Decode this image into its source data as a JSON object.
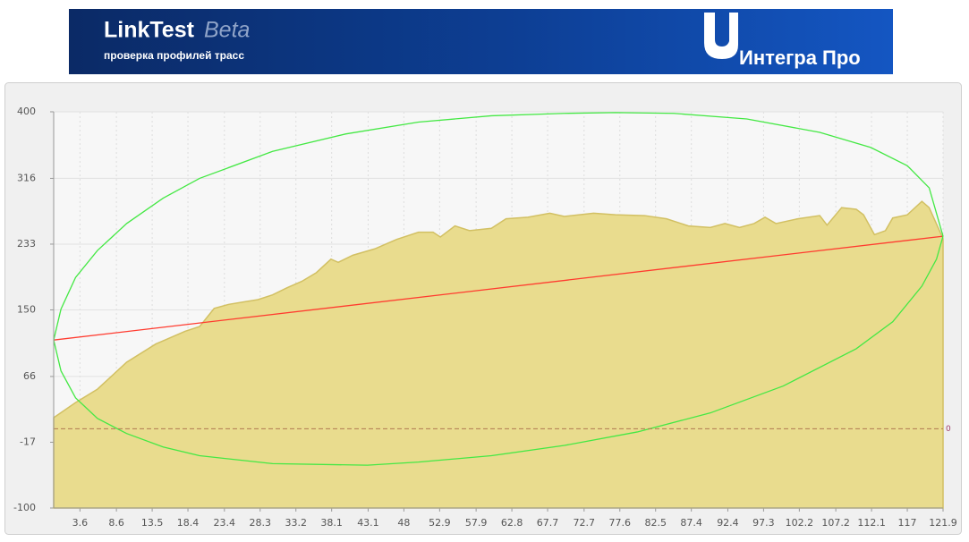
{
  "header": {
    "title": "LinkTest",
    "badge": "Beta",
    "subtitle": "проверка профилей трасс",
    "brand": "Интегра Про"
  },
  "chart_data": {
    "type": "line",
    "xlim": [
      0,
      121.9
    ],
    "xticks": [
      3.6,
      8.6,
      13.5,
      18.4,
      23.4,
      28.3,
      33.2,
      38.1,
      43.1,
      48,
      52.9,
      57.9,
      62.8,
      67.7,
      72.7,
      77.6,
      82.5,
      87.4,
      92.4,
      97.3,
      102.2,
      107.2,
      112.1,
      117,
      121.9
    ],
    "ylim": [
      -100,
      400
    ],
    "yticks": [
      -100,
      -17,
      66,
      150,
      233,
      316,
      400
    ],
    "hline": 0,
    "grid": true,
    "series": [
      {
        "name": "terrain",
        "color": "#e9dc8e",
        "fill": true,
        "x": [
          0,
          3,
          6,
          10,
          14,
          18,
          20,
          22,
          24,
          26,
          28,
          30,
          32,
          34,
          36,
          38,
          39,
          41,
          44,
          47,
          50,
          52,
          53,
          55,
          57,
          60,
          62,
          65,
          68,
          70,
          74,
          77,
          81,
          84,
          87,
          90,
          92,
          94,
          96,
          97.5,
          99,
          102,
          105,
          106,
          108,
          110,
          111,
          112.5,
          114,
          115,
          117,
          119,
          120,
          121.9
        ],
        "values": [
          14,
          33,
          50,
          84,
          107,
          123,
          129,
          152,
          157,
          160,
          163,
          169,
          178,
          186,
          197,
          214,
          210,
          219,
          227,
          239,
          248,
          248,
          242,
          256,
          250,
          253,
          265,
          267,
          272,
          268,
          272,
          270,
          269,
          265,
          256,
          254,
          259,
          254,
          259,
          267,
          259,
          265,
          269,
          257,
          279,
          277,
          270,
          245,
          250,
          266,
          270,
          287,
          279,
          240
        ]
      },
      {
        "name": "line-of-sight",
        "color": "#ff3b2f",
        "x": [
          0,
          121.9
        ],
        "values": [
          112,
          243
        ]
      },
      {
        "name": "zone-upper",
        "color": "#44e844",
        "x": [
          0,
          1,
          3,
          6,
          10,
          15,
          20,
          30,
          40,
          50,
          60,
          70,
          77,
          85,
          95,
          105,
          112,
          117,
          120,
          121.9
        ],
        "values": [
          112,
          151,
          191,
          225,
          259,
          291,
          316,
          350,
          372,
          387,
          395,
          398,
          399,
          398,
          391,
          374,
          355,
          332,
          304,
          243
        ]
      },
      {
        "name": "zone-lower",
        "color": "#44e844",
        "x": [
          0,
          1,
          3,
          6,
          10,
          15,
          20,
          30,
          43,
          50,
          60,
          70,
          80,
          90,
          100,
          110,
          115,
          119,
          121,
          121.9
        ],
        "values": [
          112,
          73,
          39,
          13,
          -6,
          -23,
          -34,
          -44,
          -46,
          -42,
          -34,
          -21,
          -4,
          20,
          54,
          101,
          135,
          180,
          214,
          243
        ]
      }
    ]
  }
}
